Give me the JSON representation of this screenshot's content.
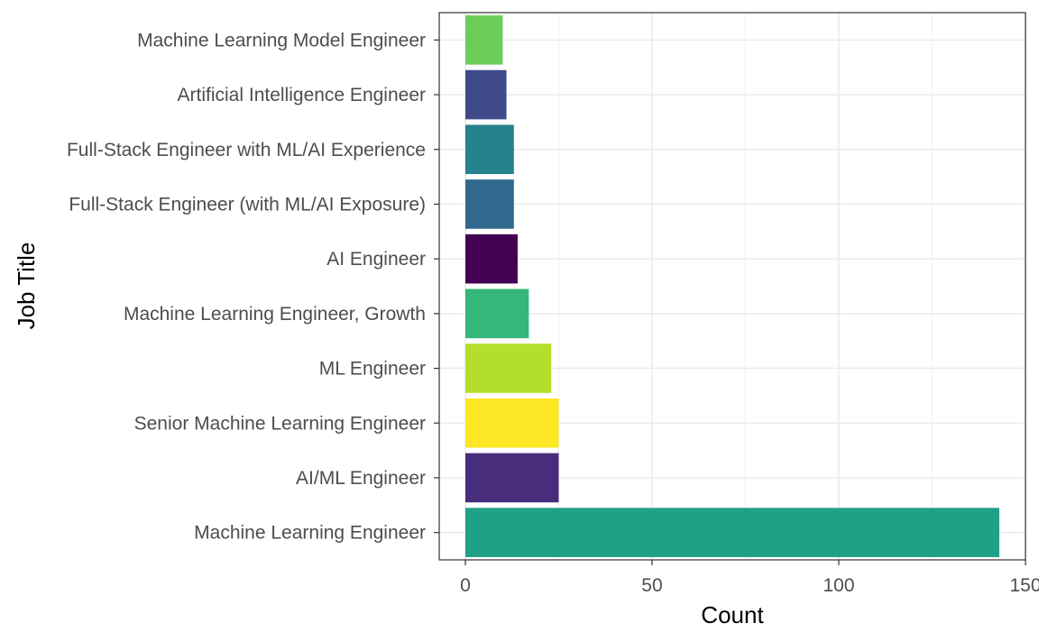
{
  "chart_data": {
    "type": "bar",
    "orientation": "horizontal",
    "xlabel": "Count",
    "ylabel": "Job Title",
    "xlim": [
      -7,
      150
    ],
    "xticks": [
      0,
      50,
      100,
      150
    ],
    "xtick_labels": [
      "0",
      "50",
      "100",
      "150"
    ],
    "grid": true,
    "legend": "none",
    "categories": [
      "Machine Learning Engineer",
      "AI/ML Engineer",
      "Senior Machine Learning Engineer",
      "ML Engineer",
      "Machine Learning Engineer, Growth",
      "AI Engineer",
      "Full-Stack Engineer (with ML/AI Exposure)",
      "Full-Stack Engineer with ML/AI Experience",
      "Artificial Intelligence Engineer",
      "Machine Learning Model Engineer"
    ],
    "values": [
      143,
      25,
      25,
      23,
      17,
      14,
      13,
      13,
      11,
      10
    ],
    "colors": [
      "#1FA187",
      "#472D7B",
      "#FDE725",
      "#B4DE2C",
      "#35B779",
      "#440154",
      "#31688E",
      "#26828E",
      "#3E4A89",
      "#6DCD59"
    ]
  }
}
